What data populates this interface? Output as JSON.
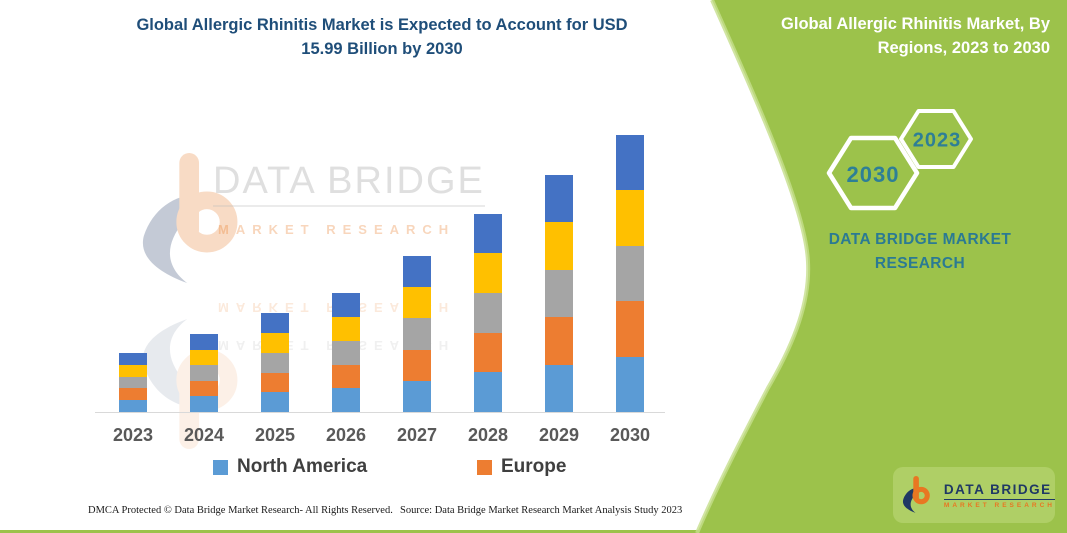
{
  "header": {
    "title_line1": "Global Allergic Rhinitis Market is Expected to Account for USD",
    "title_line2": "15.99 Billion by 2030"
  },
  "side_panel": {
    "heading_line1": "Global Allergic Rhinitis Market, By",
    "heading_line2": "Regions, 2023 to 2030",
    "hex_front_year": "2030",
    "hex_back_year": "2023",
    "brand_line1": "DATA BRIDGE MARKET",
    "brand_line2": "RESEARCH",
    "colors": {
      "panel_green": "#9CC24B",
      "edge_highlight_green": "#C6DE8C",
      "badge_green": "#AFCF66",
      "year_teal": "#2E7F96",
      "brand_teal": "#2B7A93"
    }
  },
  "logo_badge": {
    "brand": "DATA BRIDGE",
    "sub": "MARKET RESEARCH"
  },
  "watermark": {
    "brand": "DATA BRIDGE",
    "sub": "MARKET RESEARCH"
  },
  "chart_data": {
    "type": "bar",
    "stacked": true,
    "unit": "USD Billion",
    "values_are_estimates": true,
    "categories": [
      "2023",
      "2024",
      "2025",
      "2026",
      "2027",
      "2028",
      "2029",
      "2030"
    ],
    "totals": [
      3.41,
      4.5,
      5.72,
      6.87,
      9.01,
      11.43,
      13.68,
      15.99
    ],
    "series": [
      {
        "name": "North America",
        "color": "#5B9BD5",
        "values": [
          0.68,
          0.9,
          1.14,
          1.37,
          1.8,
          2.29,
          2.74,
          3.2
        ]
      },
      {
        "name": "Europe",
        "color": "#ED7D31",
        "values": [
          0.68,
          0.9,
          1.14,
          1.37,
          1.8,
          2.29,
          2.74,
          3.2
        ]
      },
      {
        "name": "",
        "color": "#A5A5A5",
        "values": [
          0.68,
          0.9,
          1.14,
          1.37,
          1.8,
          2.29,
          2.74,
          3.2
        ]
      },
      {
        "name": "",
        "color": "#FFC000",
        "values": [
          0.68,
          0.9,
          1.14,
          1.37,
          1.8,
          2.29,
          2.74,
          3.2
        ]
      },
      {
        "name": "",
        "color": "#4472C4",
        "values": [
          0.68,
          0.9,
          1.14,
          1.37,
          1.8,
          2.29,
          2.74,
          3.2
        ]
      }
    ],
    "legend": [
      {
        "label": "North America",
        "color": "#5B9BD5"
      },
      {
        "label": "Europe",
        "color": "#ED7D31"
      }
    ],
    "legend_position": "bottom",
    "axes": {
      "y_axis_visible": false,
      "ylim": [
        0,
        16
      ],
      "x_axis_line_color": "#D9D9D9",
      "grid": false
    }
  },
  "footer": {
    "left": "DMCA Protected © Data Bridge Market Research-  All Rights Reserved.",
    "right": "Source: Data Bridge Market Research  Market Analysis Study 2023"
  }
}
